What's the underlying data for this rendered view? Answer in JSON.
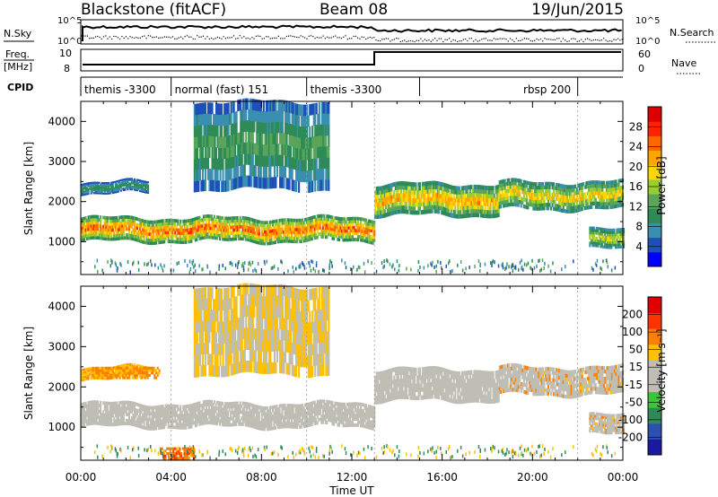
{
  "header": {
    "station": "Blackstone (fitACF)",
    "beam": "Beam 08",
    "date": "19/Jun/2015"
  },
  "status_panel": {
    "nsky_label": "N.Sky",
    "nsky_ticks": [
      "10^5",
      "10^0"
    ],
    "nsearch_label": "N.Search",
    "nsearch_ticks": [
      "10^5",
      "10^0"
    ],
    "freq_label_line1": "Freq.",
    "freq_label_line2": "[MHz]",
    "freq_ticks": [
      "10",
      "8"
    ],
    "nave_label": "Nave",
    "nave_ticks": [
      "60",
      "0"
    ],
    "cpid_label": "CPID"
  },
  "cpid_segments": [
    {
      "label": "themis -3300",
      "start_hour": 0.0,
      "end_hour": 4.0
    },
    {
      "label": "normal (fast) 151",
      "start_hour": 4.0,
      "end_hour": 10.0
    },
    {
      "label": "themis -3300",
      "start_hour": 10.0,
      "end_hour": 15.0
    },
    {
      "label": "rbsp 200",
      "start_hour": 15.0,
      "end_hour": 22.0
    },
    {
      "label": "",
      "start_hour": 22.0,
      "end_hour": 24.0
    }
  ],
  "power_colorbar": {
    "label": "Power [dB]",
    "ticks": [
      "28",
      "24",
      "20",
      "16",
      "12",
      "8",
      "4"
    ],
    "colors": [
      "#0000ff",
      "#1f4fb8",
      "#3a8fb0",
      "#2e8b57",
      "#5aa55a",
      "#9acd32",
      "#ffd700",
      "#ffa500",
      "#ff6600",
      "#ff2200",
      "#dd0000"
    ]
  },
  "velocity_colorbar": {
    "label": "Velocity [m s⁻¹]",
    "ticks": [
      "200",
      "100",
      "50",
      "15",
      "-15",
      "-50",
      "-100",
      "-200"
    ],
    "colors": [
      "#1a1aa0",
      "#2d4fb0",
      "#2e8b57",
      "#39c639",
      "#bebeb4",
      "#bebeb4",
      "#ffc000",
      "#ff8000",
      "#ff3300",
      "#e00000"
    ]
  },
  "chart_data": {
    "type": "heatmap",
    "xlabel": "Time UT",
    "x_ticks": [
      "00:00",
      "04:00",
      "08:00",
      "12:00",
      "16:00",
      "20:00",
      "00:00"
    ],
    "xlim_hours": [
      0,
      24
    ],
    "panels": [
      {
        "name": "power",
        "ylabel": "Slant Range [km]",
        "y_ticks": [
          1000,
          2000,
          3000,
          4000
        ],
        "ylim": [
          180,
          4500
        ],
        "features": [
          {
            "from_hour": 0.0,
            "to_hour": 13.0,
            "range_km": [
              1000,
              1600
            ],
            "peak_db": 28
          },
          {
            "from_hour": 13.0,
            "to_hour": 18.5,
            "range_km": [
              1650,
              2450
            ],
            "peak_db": 24
          },
          {
            "from_hour": 18.5,
            "to_hour": 24.0,
            "range_km": [
              1800,
              2500
            ],
            "peak_db": 22
          },
          {
            "from_hour": 22.5,
            "to_hour": 24.0,
            "range_km": [
              800,
              1300
            ],
            "peak_db": 20
          },
          {
            "from_hour": 5.0,
            "to_hour": 11.0,
            "range_km": [
              2300,
              4500
            ],
            "peak_db": 14
          },
          {
            "from_hour": 0.0,
            "to_hour": 3.0,
            "range_km": [
              2200,
              2500
            ],
            "peak_db": 12
          }
        ]
      },
      {
        "name": "velocity",
        "ylabel": "Slant Range [km]",
        "y_ticks": [
          1000,
          2000,
          3000,
          4000
        ],
        "ylim": [
          180,
          4500
        ],
        "features": [
          {
            "from_hour": 0.0,
            "to_hour": 13.0,
            "range_km": [
              1000,
              1600
            ],
            "velocity_ms": 0
          },
          {
            "from_hour": 13.0,
            "to_hour": 24.0,
            "range_km": [
              1650,
              2450
            ],
            "velocity_ms": 0
          },
          {
            "from_hour": 3.5,
            "to_hour": 5.0,
            "range_km": [
              200,
              450
            ],
            "velocity_ms": -70
          },
          {
            "from_hour": 0.5,
            "to_hour": 3.5,
            "range_km": [
              2200,
              2500
            ],
            "velocity_ms": -40
          }
        ]
      }
    ]
  }
}
